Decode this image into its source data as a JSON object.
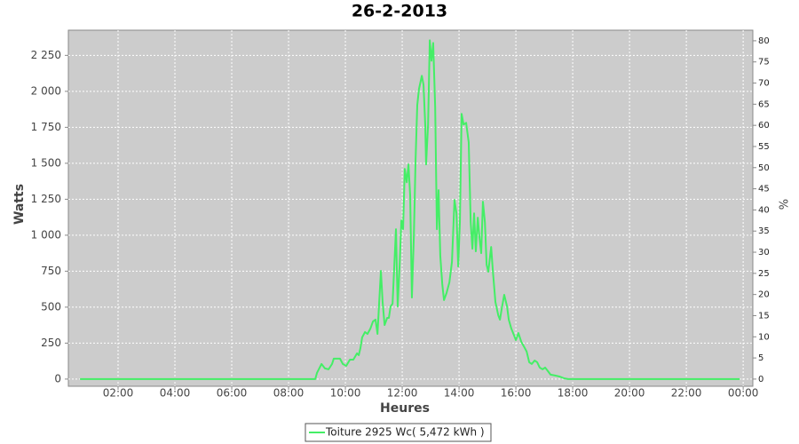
{
  "chart_data": {
    "type": "line",
    "title": "26-2-2013",
    "x_label": "Heures",
    "y_label": "Watts",
    "y2_label": "%",
    "xlim": [
      0.25,
      24.34
    ],
    "xticks": [
      {
        "value": 2,
        "label": "02:00"
      },
      {
        "value": 4,
        "label": "04:00"
      },
      {
        "value": 6,
        "label": "06:00"
      },
      {
        "value": 8,
        "label": "08:00"
      },
      {
        "value": 10,
        "label": "10:00"
      },
      {
        "value": 12,
        "label": "12:00"
      },
      {
        "value": 14,
        "label": "14:00"
      },
      {
        "value": 16,
        "label": "16:00"
      },
      {
        "value": 18,
        "label": "18:00"
      },
      {
        "value": 20,
        "label": "20:00"
      },
      {
        "value": 22,
        "label": "22:00"
      },
      {
        "value": 24,
        "label": "00:00"
      }
    ],
    "ylim": [
      -50,
      2425
    ],
    "yticks": [
      0,
      250,
      500,
      750,
      {
        "value": 1000,
        "label": "1 000"
      },
      {
        "value": 1250,
        "label": "1 250"
      },
      {
        "value": 1500,
        "label": "1 500"
      },
      {
        "value": 1750,
        "label": "1 750"
      },
      {
        "value": 2000,
        "label": "2 000"
      },
      {
        "value": 2250,
        "label": "2 250"
      }
    ],
    "y2lim": [
      -1.7,
      82.5
    ],
    "y2ticks": [
      0,
      5,
      10,
      15,
      20,
      25,
      30,
      35,
      40,
      45,
      50,
      55,
      60,
      65,
      70,
      75,
      80
    ],
    "grid": true,
    "legend": "bottom",
    "series": [
      {
        "name": "Toiture 2925 Wc( 5,472 kWh )",
        "color": "#44ee66",
        "x": [
          0.66,
          8.94,
          9.0,
          9.16,
          9.28,
          9.41,
          9.53,
          9.59,
          9.81,
          9.91,
          10.03,
          10.16,
          10.28,
          10.41,
          10.47,
          10.53,
          10.59,
          10.69,
          10.78,
          10.88,
          10.97,
          11.06,
          11.13,
          11.19,
          11.25,
          11.31,
          11.38,
          11.47,
          11.53,
          11.59,
          11.66,
          11.72,
          11.78,
          11.84,
          11.91,
          11.97,
          12.03,
          12.09,
          12.16,
          12.22,
          12.28,
          12.34,
          12.41,
          12.47,
          12.53,
          12.59,
          12.69,
          12.75,
          12.81,
          12.84,
          12.91,
          12.97,
          13.03,
          13.09,
          13.16,
          13.22,
          13.28,
          13.34,
          13.41,
          13.47,
          13.56,
          13.66,
          13.75,
          13.84,
          13.91,
          13.97,
          14.03,
          14.09,
          14.16,
          14.25,
          14.34,
          14.41,
          14.47,
          14.53,
          14.59,
          14.66,
          14.72,
          14.78,
          14.84,
          14.91,
          14.97,
          15.03,
          15.13,
          15.19,
          15.28,
          15.38,
          15.44,
          15.5,
          15.59,
          15.69,
          15.75,
          15.84,
          15.94,
          16.0,
          16.09,
          16.19,
          16.28,
          16.38,
          16.47,
          16.56,
          16.66,
          16.75,
          16.84,
          16.94,
          17.03,
          17.13,
          17.22,
          17.38,
          17.53,
          17.69,
          17.84,
          23.88
        ],
        "values": [
          0,
          0,
          43,
          105,
          74,
          68,
          105,
          142,
          142,
          105,
          92,
          135,
          135,
          179,
          166,
          216,
          290,
          327,
          314,
          351,
          400,
          413,
          314,
          536,
          752,
          536,
          376,
          425,
          425,
          505,
          524,
          783,
          1042,
          505,
          795,
          1103,
          1042,
          1461,
          1368,
          1492,
          1276,
          567,
          998,
          1523,
          1905,
          2016,
          2108,
          2046,
          1769,
          1492,
          1769,
          2355,
          2213,
          2336,
          1892,
          1042,
          1313,
          857,
          660,
          549,
          598,
          672,
          814,
          1245,
          1152,
          783,
          1091,
          1843,
          1769,
          1781,
          1646,
          1091,
          906,
          1152,
          888,
          1122,
          980,
          875,
          1233,
          1091,
          795,
          746,
          918,
          752,
          536,
          444,
          413,
          487,
          586,
          505,
          413,
          351,
          302,
          271,
          320,
          259,
          228,
          191,
          117,
          105,
          129,
          117,
          80,
          68,
          80,
          55,
          31,
          25,
          18,
          6,
          0,
          0
        ]
      }
    ]
  }
}
